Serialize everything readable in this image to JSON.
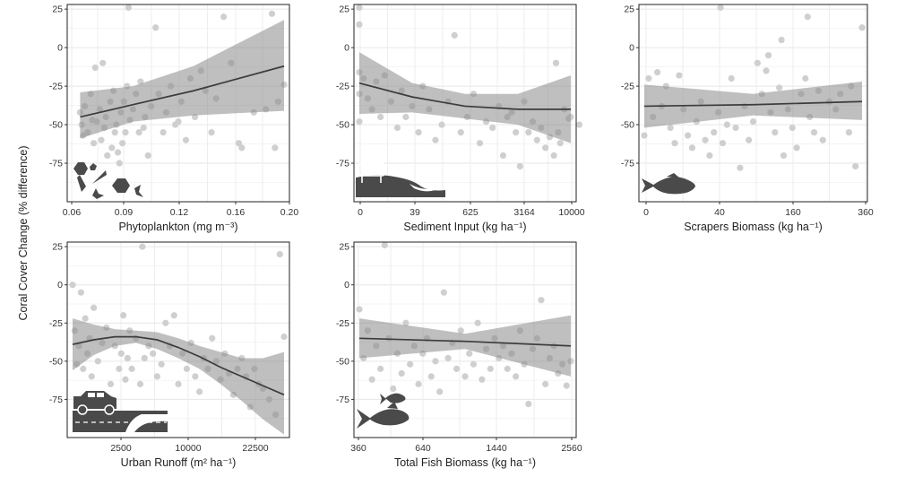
{
  "figure": {
    "ylabel": "Coral Cover Change (% difference)"
  },
  "chart_data": [
    {
      "type": "scatter",
      "xlabel": "Phytoplankton (mg m⁻³)",
      "x_ticks": [
        "0.06",
        "0.09",
        "0.12",
        "0.16",
        "0.20"
      ],
      "y_ticks": [
        "25",
        "0",
        "-25",
        "-50",
        "-75"
      ],
      "ylim": [
        -100,
        28
      ],
      "icon": "phytoplankton-icon",
      "points": [
        [
          0.065,
          -42
        ],
        [
          0.066,
          -50
        ],
        [
          0.067,
          -57
        ],
        [
          0.068,
          -38
        ],
        [
          0.07,
          -55
        ],
        [
          0.072,
          -30
        ],
        [
          0.073,
          -47
        ],
        [
          0.074,
          -62
        ],
        [
          0.075,
          -13
        ],
        [
          0.076,
          -48
        ],
        [
          0.078,
          -40
        ],
        [
          0.079,
          -60
        ],
        [
          0.08,
          -10
        ],
        [
          0.081,
          -52
        ],
        [
          0.082,
          -45
        ],
        [
          0.083,
          -70
        ],
        [
          0.085,
          -35
        ],
        [
          0.086,
          -65
        ],
        [
          0.087,
          -28
        ],
        [
          0.088,
          -55
        ],
        [
          0.089,
          -50
        ],
        [
          0.09,
          -68
        ],
        [
          0.091,
          -75
        ],
        [
          0.092,
          -42
        ],
        [
          0.093,
          -62
        ],
        [
          0.094,
          -35
        ],
        [
          0.095,
          -55
        ],
        [
          0.096,
          -25
        ],
        [
          0.097,
          26
        ],
        [
          0.098,
          -47
        ],
        [
          0.1,
          -40
        ],
        [
          0.102,
          -30
        ],
        [
          0.104,
          -55
        ],
        [
          0.105,
          -22
        ],
        [
          0.107,
          -52
        ],
        [
          0.108,
          -45
        ],
        [
          0.11,
          -70
        ],
        [
          0.112,
          -38
        ],
        [
          0.115,
          13
        ],
        [
          0.117,
          -30
        ],
        [
          0.12,
          -55
        ],
        [
          0.122,
          -42
        ],
        [
          0.125,
          -25
        ],
        [
          0.128,
          -50
        ],
        [
          0.13,
          -48
        ],
        [
          0.132,
          -35
        ],
        [
          0.135,
          -60
        ],
        [
          0.138,
          -20
        ],
        [
          0.141,
          -45
        ],
        [
          0.145,
          -15
        ],
        [
          0.148,
          -28
        ],
        [
          0.152,
          -55
        ],
        [
          0.155,
          -33
        ],
        [
          0.16,
          20
        ],
        [
          0.165,
          -10
        ],
        [
          0.17,
          -62
        ],
        [
          0.172,
          -65
        ],
        [
          0.18,
          -42
        ],
        [
          0.188,
          -40
        ],
        [
          0.192,
          22
        ],
        [
          0.194,
          -65
        ],
        [
          0.196,
          -35
        ],
        [
          0.2,
          -24
        ]
      ],
      "fit": {
        "x": [
          0.065,
          0.1,
          0.14,
          0.2
        ],
        "y": [
          -45,
          -37,
          -28,
          -12
        ]
      },
      "ci": {
        "x": [
          0.065,
          0.1,
          0.14,
          0.2
        ],
        "upper": [
          -29,
          -25,
          -12,
          18
        ],
        "lower": [
          -59,
          -48,
          -44,
          -41
        ]
      }
    },
    {
      "type": "scatter",
      "xlabel": "Sediment Input (kg ha⁻¹)",
      "x_ticks": [
        "0",
        "39",
        "625",
        "3164",
        "10000"
      ],
      "y_ticks": [
        "25",
        "0",
        "-25",
        "-50",
        "-75"
      ],
      "ylim": [
        -100,
        28
      ],
      "icon": "cow-erosion-icon",
      "points": [
        [
          0,
          26
        ],
        [
          0,
          15
        ],
        [
          0,
          -16
        ],
        [
          0,
          -30
        ],
        [
          0,
          -48
        ],
        [
          2,
          -20
        ],
        [
          4,
          -33
        ],
        [
          6,
          -40
        ],
        [
          8,
          -22
        ],
        [
          10,
          -45
        ],
        [
          12,
          -18
        ],
        [
          15,
          -35
        ],
        [
          18,
          -52
        ],
        [
          20,
          -28
        ],
        [
          22,
          -45
        ],
        [
          25,
          -38
        ],
        [
          28,
          -55
        ],
        [
          30,
          -25
        ],
        [
          33,
          -40
        ],
        [
          36,
          -60
        ],
        [
          39,
          -50
        ],
        [
          42,
          -35
        ],
        [
          45,
          8
        ],
        [
          48,
          -55
        ],
        [
          51,
          -45
        ],
        [
          54,
          -30
        ],
        [
          57,
          -62
        ],
        [
          60,
          -48
        ],
        [
          63,
          -52
        ],
        [
          66,
          -38
        ],
        [
          68,
          -70
        ],
        [
          70,
          -45
        ],
        [
          72,
          -42
        ],
        [
          74,
          -55
        ],
        [
          76,
          -77
        ],
        [
          78,
          -35
        ],
        [
          80,
          -55
        ],
        [
          82,
          -48
        ],
        [
          84,
          -60
        ],
        [
          86,
          -52
        ],
        [
          88,
          -65
        ],
        [
          90,
          -58
        ],
        [
          92,
          -70
        ],
        [
          93,
          -10
        ],
        [
          94,
          -55
        ],
        [
          95,
          -62
        ],
        [
          97,
          -40
        ],
        [
          99,
          -46
        ],
        [
          100,
          -45
        ],
        [
          104,
          -50
        ]
      ],
      "fit": {
        "x": [
          0,
          25,
          50,
          75,
          100
        ],
        "y": [
          -23,
          -32,
          -38,
          -40,
          -40
        ]
      },
      "ci": {
        "x": [
          0,
          25,
          50,
          75,
          100
        ],
        "upper": [
          -3,
          -23,
          -30,
          -30,
          -18
        ],
        "lower": [
          -43,
          -42,
          -46,
          -50,
          -62
        ]
      }
    },
    {
      "type": "scatter",
      "xlabel": "Scrapers Biomass (kg ha⁻¹)",
      "x_ticks": [
        "0",
        "40",
        "160",
        "360"
      ],
      "y_ticks": [
        "25",
        "0",
        "-25",
        "-50",
        "-75"
      ],
      "ylim": [
        -100,
        28
      ],
      "icon": "scraper-fish-icon",
      "points": [
        [
          0,
          -57
        ],
        [
          2,
          -20
        ],
        [
          4,
          -45
        ],
        [
          6,
          -16
        ],
        [
          8,
          -38
        ],
        [
          10,
          -25
        ],
        [
          12,
          -52
        ],
        [
          14,
          -62
        ],
        [
          16,
          -18
        ],
        [
          18,
          -40
        ],
        [
          20,
          -57
        ],
        [
          22,
          -65
        ],
        [
          24,
          -48
        ],
        [
          26,
          -35
        ],
        [
          28,
          -60
        ],
        [
          30,
          -70
        ],
        [
          32,
          -55
        ],
        [
          34,
          -42
        ],
        [
          35,
          26
        ],
        [
          36,
          -62
        ],
        [
          38,
          -50
        ],
        [
          40,
          -20
        ],
        [
          42,
          -52
        ],
        [
          44,
          -78
        ],
        [
          46,
          -38
        ],
        [
          48,
          -60
        ],
        [
          50,
          -48
        ],
        [
          52,
          -10
        ],
        [
          54,
          -30
        ],
        [
          56,
          -15
        ],
        [
          57,
          -5
        ],
        [
          58,
          -42
        ],
        [
          60,
          -55
        ],
        [
          62,
          -26
        ],
        [
          63,
          5
        ],
        [
          64,
          -70
        ],
        [
          66,
          -40
        ],
        [
          68,
          -52
        ],
        [
          70,
          -65
        ],
        [
          72,
          -30
        ],
        [
          74,
          -20
        ],
        [
          75,
          20
        ],
        [
          76,
          -45
        ],
        [
          78,
          -55
        ],
        [
          80,
          -28
        ],
        [
          82,
          -60
        ],
        [
          85,
          -35
        ],
        [
          88,
          -40
        ],
        [
          90,
          -30
        ],
        [
          94,
          -55
        ],
        [
          95,
          -25
        ],
        [
          97,
          -77
        ],
        [
          100,
          13
        ]
      ],
      "fit": {
        "x": [
          0,
          50,
          100
        ],
        "y": [
          -38,
          -37,
          -35
        ]
      },
      "ci": {
        "x": [
          0,
          50,
          100
        ],
        "upper": [
          -24,
          -30,
          -22
        ],
        "lower": [
          -52,
          -44,
          -47
        ]
      }
    },
    {
      "type": "scatter",
      "xlabel": "Urban Runoff (m² ha⁻¹)",
      "x_ticks": [
        "2500",
        "10000",
        "22500"
      ],
      "y_ticks": [
        "25",
        "0",
        "-25",
        "-50",
        "-75"
      ],
      "ylim": [
        -100,
        28
      ],
      "icon": "car-road-icon",
      "points": [
        [
          0,
          0
        ],
        [
          1,
          -30
        ],
        [
          2,
          -52
        ],
        [
          3,
          -40
        ],
        [
          4,
          -5
        ],
        [
          5,
          -55
        ],
        [
          6,
          -22
        ],
        [
          7,
          -45
        ],
        [
          8,
          -35
        ],
        [
          9,
          -60
        ],
        [
          10,
          -15
        ],
        [
          12,
          -50
        ],
        [
          14,
          -38
        ],
        [
          16,
          -28
        ],
        [
          18,
          -65
        ],
        [
          20,
          -40
        ],
        [
          22,
          -55
        ],
        [
          23,
          -45
        ],
        [
          24,
          -20
        ],
        [
          25,
          -62
        ],
        [
          26,
          -48
        ],
        [
          27,
          -30
        ],
        [
          28,
          -55
        ],
        [
          30,
          -35
        ],
        [
          32,
          -65
        ],
        [
          33,
          25
        ],
        [
          34,
          -48
        ],
        [
          36,
          -40
        ],
        [
          38,
          -45
        ],
        [
          40,
          -60
        ],
        [
          42,
          -52
        ],
        [
          44,
          -25
        ],
        [
          46,
          -40
        ],
        [
          48,
          -20
        ],
        [
          50,
          -65
        ],
        [
          52,
          -45
        ],
        [
          54,
          -55
        ],
        [
          56,
          -38
        ],
        [
          58,
          -60
        ],
        [
          60,
          -70
        ],
        [
          62,
          -48
        ],
        [
          64,
          -55
        ],
        [
          66,
          -35
        ],
        [
          68,
          -50
        ],
        [
          70,
          -62
        ],
        [
          72,
          -45
        ],
        [
          74,
          -58
        ],
        [
          76,
          -72
        ],
        [
          78,
          -55
        ],
        [
          80,
          -48
        ],
        [
          82,
          -60
        ],
        [
          84,
          -80
        ],
        [
          86,
          -55
        ],
        [
          88,
          -65
        ],
        [
          90,
          -68
        ],
        [
          93,
          -75
        ],
        [
          96,
          -85
        ],
        [
          98,
          20
        ],
        [
          100,
          -34
        ]
      ],
      "fit": {
        "x": [
          0,
          10,
          20,
          30,
          40,
          50,
          60,
          70,
          80,
          90,
          100
        ],
        "y": [
          -39,
          -36,
          -34,
          -34,
          -36,
          -41,
          -47,
          -54,
          -60,
          -66,
          -72
        ]
      },
      "ci": {
        "x": [
          0,
          10,
          20,
          30,
          40,
          50,
          60,
          70,
          80,
          90,
          100
        ],
        "upper": [
          -22,
          -26,
          -29,
          -30,
          -31,
          -35,
          -40,
          -44,
          -48,
          -48,
          -44
        ],
        "lower": [
          -56,
          -46,
          -40,
          -38,
          -42,
          -48,
          -55,
          -65,
          -76,
          -88,
          -98
        ]
      }
    },
    {
      "type": "scatter",
      "xlabel": "Total Fish Biomass (kg ha⁻¹)",
      "x_ticks": [
        "360",
        "640",
        "1440",
        "2560"
      ],
      "y_ticks": [
        "25",
        "0",
        "-25",
        "-50",
        "-75"
      ],
      "ylim": [
        -100,
        28
      ],
      "icon": "fish-icon",
      "points": [
        [
          0,
          -16
        ],
        [
          2,
          -48
        ],
        [
          4,
          -30
        ],
        [
          6,
          -62
        ],
        [
          8,
          -40
        ],
        [
          10,
          -55
        ],
        [
          12,
          26
        ],
        [
          14,
          -35
        ],
        [
          16,
          -68
        ],
        [
          18,
          -45
        ],
        [
          20,
          -58
        ],
        [
          22,
          -25
        ],
        [
          24,
          -52
        ],
        [
          26,
          -40
        ],
        [
          28,
          -65
        ],
        [
          30,
          -45
        ],
        [
          32,
          -35
        ],
        [
          34,
          -60
        ],
        [
          36,
          -50
        ],
        [
          38,
          -70
        ],
        [
          40,
          -5
        ],
        [
          42,
          -48
        ],
        [
          44,
          -38
        ],
        [
          46,
          -55
        ],
        [
          48,
          -30
        ],
        [
          50,
          -60
        ],
        [
          52,
          -45
        ],
        [
          54,
          -52
        ],
        [
          56,
          -25
        ],
        [
          58,
          -62
        ],
        [
          60,
          -42
        ],
        [
          62,
          -55
        ],
        [
          64,
          -35
        ],
        [
          66,
          -48
        ],
        [
          68,
          -40
        ],
        [
          70,
          -55
        ],
        [
          72,
          -45
        ],
        [
          74,
          -60
        ],
        [
          76,
          -30
        ],
        [
          78,
          -52
        ],
        [
          80,
          -78
        ],
        [
          82,
          -42
        ],
        [
          84,
          -35
        ],
        [
          86,
          -10
        ],
        [
          88,
          -65
        ],
        [
          90,
          -48
        ],
        [
          92,
          -40
        ],
        [
          94,
          -58
        ],
        [
          96,
          -52
        ],
        [
          98,
          -66
        ],
        [
          100,
          -50
        ]
      ],
      "fit": {
        "x": [
          0,
          50,
          100
        ],
        "y": [
          -35,
          -37,
          -40
        ]
      },
      "ci": {
        "x": [
          0,
          50,
          100
        ],
        "upper": [
          -22,
          -32,
          -20
        ],
        "lower": [
          -48,
          -42,
          -60
        ]
      }
    }
  ]
}
